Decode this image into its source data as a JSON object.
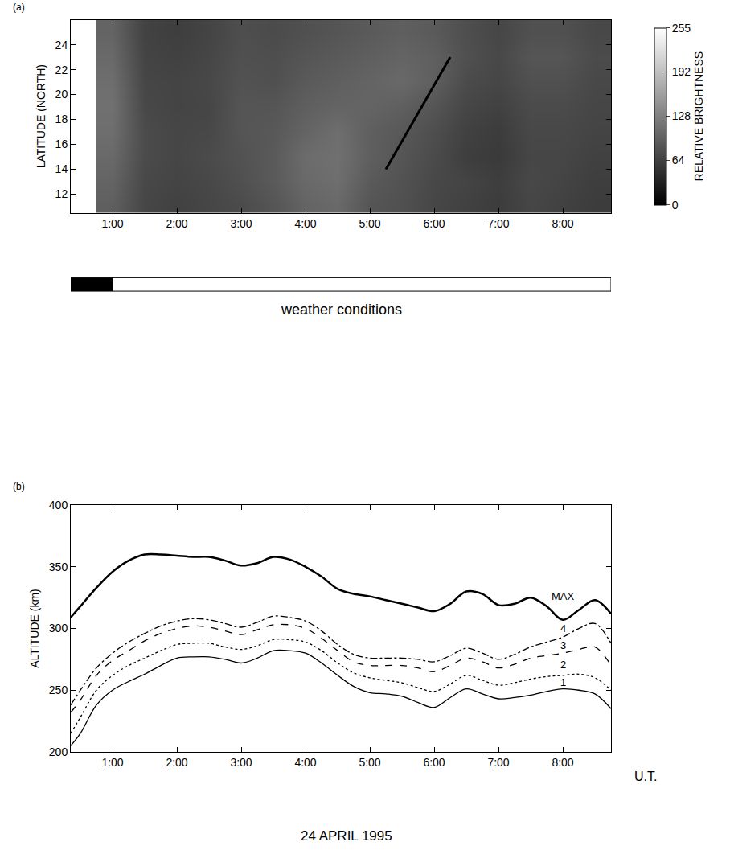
{
  "chart_data": [
    {
      "type": "heatmap",
      "panel": "(a)",
      "ylabel": "LATITUDE (NORTH)",
      "grid": false,
      "xlim": [
        0.35,
        8.75
      ],
      "xticks": [
        {
          "value": 1,
          "label": "1:00"
        },
        {
          "value": 2,
          "label": "2:00"
        },
        {
          "value": 3,
          "label": "3:00"
        },
        {
          "value": 4,
          "label": "4:00"
        },
        {
          "value": 5,
          "label": "5:00"
        },
        {
          "value": 6,
          "label": "6:00"
        },
        {
          "value": 7,
          "label": "7:00"
        },
        {
          "value": 8,
          "label": "8:00"
        }
      ],
      "ylim": [
        10.5,
        26
      ],
      "yticks": [
        12,
        14,
        16,
        18,
        20,
        22,
        24
      ],
      "x": [
        1.0,
        1.5,
        2.0,
        2.5,
        3.0,
        3.5,
        4.0,
        4.5,
        5.0,
        5.5,
        6.0,
        6.5,
        7.0,
        7.5,
        8.0,
        8.5
      ],
      "y": [
        11,
        13,
        15,
        17,
        19,
        21,
        23,
        25
      ],
      "z": [
        [
          95,
          70,
          65,
          70,
          75,
          85,
          100,
          105,
          85,
          80,
          70,
          65,
          60,
          70,
          65,
          60
        ],
        [
          100,
          72,
          68,
          72,
          80,
          90,
          105,
          110,
          90,
          82,
          72,
          68,
          62,
          72,
          68,
          62
        ],
        [
          105,
          75,
          70,
          75,
          82,
          90,
          108,
          112,
          95,
          85,
          75,
          62,
          58,
          70,
          70,
          65
        ],
        [
          110,
          75,
          70,
          72,
          85,
          88,
          100,
          110,
          95,
          88,
          78,
          65,
          60,
          72,
          72,
          68
        ],
        [
          112,
          72,
          68,
          70,
          85,
          85,
          95,
          100,
          100,
          95,
          85,
          70,
          65,
          75,
          75,
          70
        ],
        [
          110,
          70,
          68,
          72,
          82,
          80,
          90,
          95,
          100,
          105,
          95,
          75,
          70,
          80,
          80,
          72
        ],
        [
          105,
          68,
          65,
          70,
          80,
          78,
          85,
          90,
          95,
          100,
          95,
          80,
          72,
          85,
          85,
          75
        ],
        [
          100,
          66,
          62,
          68,
          78,
          75,
          80,
          85,
          90,
          95,
          90,
          78,
          70,
          80,
          80,
          72
        ]
      ],
      "colors": [
        "#000000",
        "#ffffff"
      ],
      "colorbar_label": "RELATIVE BRIGHTNESS",
      "zlim": [
        0,
        255
      ],
      "zticks": [
        0,
        64,
        128,
        192,
        255
      ],
      "overlay_line": {
        "x": [
          5.25,
          6.25
        ],
        "y": [
          14,
          23
        ],
        "color": "#000000"
      },
      "weather": {
        "label": "weather conditions",
        "segments": [
          {
            "start": 0.35,
            "end": 1.0,
            "color": "#000000"
          },
          {
            "start": 1.0,
            "end": 8.75,
            "color": "#ffffff"
          }
        ]
      }
    },
    {
      "type": "line",
      "panel": "(b)",
      "xlabel": "U.T.",
      "ylabel": "ALTITUDE (km)",
      "caption": "24 APRIL 1995",
      "grid": false,
      "xlim": [
        0.35,
        8.75
      ],
      "xticks": [
        {
          "value": 1,
          "label": "1:00"
        },
        {
          "value": 2,
          "label": "2:00"
        },
        {
          "value": 3,
          "label": "3:00"
        },
        {
          "value": 4,
          "label": "4:00"
        },
        {
          "value": 5,
          "label": "5:00"
        },
        {
          "value": 6,
          "label": "6:00"
        },
        {
          "value": 7,
          "label": "7:00"
        },
        {
          "value": 8,
          "label": "8:00"
        }
      ],
      "ylim": [
        200,
        400
      ],
      "yticks": [
        200,
        250,
        300,
        350,
        400
      ],
      "x": [
        0.35,
        0.5,
        0.75,
        1.0,
        1.25,
        1.5,
        1.75,
        2.0,
        2.25,
        2.5,
        2.75,
        3.0,
        3.25,
        3.5,
        3.75,
        4.0,
        4.25,
        4.5,
        4.75,
        5.0,
        5.25,
        5.5,
        5.75,
        6.0,
        6.25,
        6.5,
        6.75,
        7.0,
        7.25,
        7.5,
        7.75,
        8.0,
        8.25,
        8.5,
        8.75
      ],
      "series": [
        {
          "name": "MAX",
          "color": "#000000",
          "line_style": "solid",
          "values": [
            309,
            318,
            333,
            346,
            355,
            360,
            360,
            359,
            358,
            358,
            355,
            351,
            353,
            358,
            356,
            350,
            342,
            332,
            328,
            326,
            323,
            320,
            317,
            314,
            320,
            330,
            328,
            319,
            320,
            325,
            318,
            307,
            315,
            323,
            312
          ]
        },
        {
          "name": "4",
          "color": "#000000",
          "line_style": "dashdot",
          "values": [
            238,
            250,
            268,
            280,
            289,
            296,
            302,
            306,
            308,
            307,
            304,
            301,
            305,
            310,
            309,
            306,
            298,
            287,
            279,
            276,
            276,
            276,
            275,
            273,
            278,
            284,
            280,
            275,
            279,
            285,
            289,
            293,
            300,
            304,
            288
          ]
        },
        {
          "name": "3",
          "color": "#000000",
          "line_style": "dashed",
          "values": [
            232,
            242,
            262,
            274,
            282,
            290,
            296,
            300,
            302,
            301,
            298,
            295,
            299,
            303,
            303,
            300,
            292,
            282,
            273,
            270,
            270,
            270,
            268,
            265,
            270,
            276,
            273,
            268,
            271,
            276,
            278,
            280,
            283,
            285,
            270
          ]
        },
        {
          "name": "2",
          "color": "#000000",
          "line_style": "dotted",
          "values": [
            215,
            228,
            250,
            262,
            270,
            276,
            282,
            287,
            288,
            288,
            285,
            283,
            286,
            291,
            291,
            289,
            282,
            272,
            264,
            260,
            258,
            256,
            252,
            249,
            255,
            262,
            258,
            254,
            256,
            259,
            261,
            262,
            263,
            260,
            250
          ]
        },
        {
          "name": "1",
          "color": "#000000",
          "line_style": "solid",
          "values": [
            205,
            215,
            238,
            250,
            257,
            263,
            270,
            276,
            277,
            277,
            275,
            272,
            276,
            282,
            282,
            280,
            272,
            262,
            253,
            248,
            247,
            245,
            240,
            236,
            244,
            251,
            247,
            243,
            244,
            246,
            249,
            251,
            250,
            247,
            235
          ]
        }
      ]
    }
  ]
}
